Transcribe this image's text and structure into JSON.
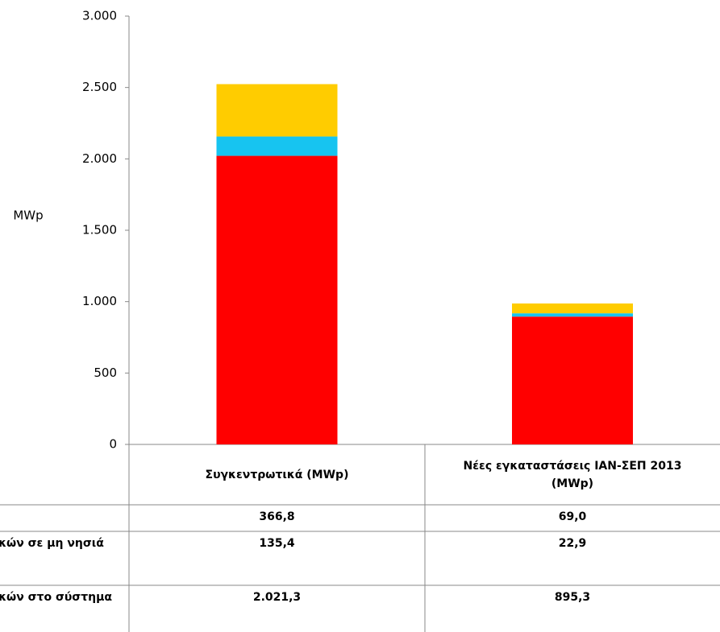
{
  "chart_data": {
    "type": "stacked-bar",
    "y_label": "MWp",
    "categories": [
      "Συγκεντρωτικά (MWp)",
      "Νέες εγκαταστάσεις ΙΑΝ-ΣΕΠ 2013 (MWp)"
    ],
    "series": [
      {
        "name": "οικιακών στο σύστημα",
        "color": "#ff0000",
        "values": [
          2021.3,
          895.3
        ],
        "value_labels": [
          "2.021,3",
          "895,3"
        ]
      },
      {
        "name": "οικιακών σε μη νησιά",
        "color": "#17c4f0",
        "values": [
          135.4,
          22.9
        ],
        "value_labels": [
          "135,4",
          "22,9"
        ]
      },
      {
        "color": "#ffcc00",
        "values": [
          366.8,
          69.0
        ],
        "value_labels": [
          "366,8",
          "69,0"
        ]
      }
    ],
    "ylim": [
      0,
      3000
    ],
    "yticks": [
      0,
      500,
      {
        "value": 1000,
        "label": "1.000"
      },
      {
        "value": 1500,
        "label": "1.500"
      },
      {
        "value": 2000,
        "label": "2.000"
      },
      {
        "value": 2500,
        "label": "2.500"
      },
      {
        "value": 3000,
        "label": "3.000"
      }
    ]
  }
}
